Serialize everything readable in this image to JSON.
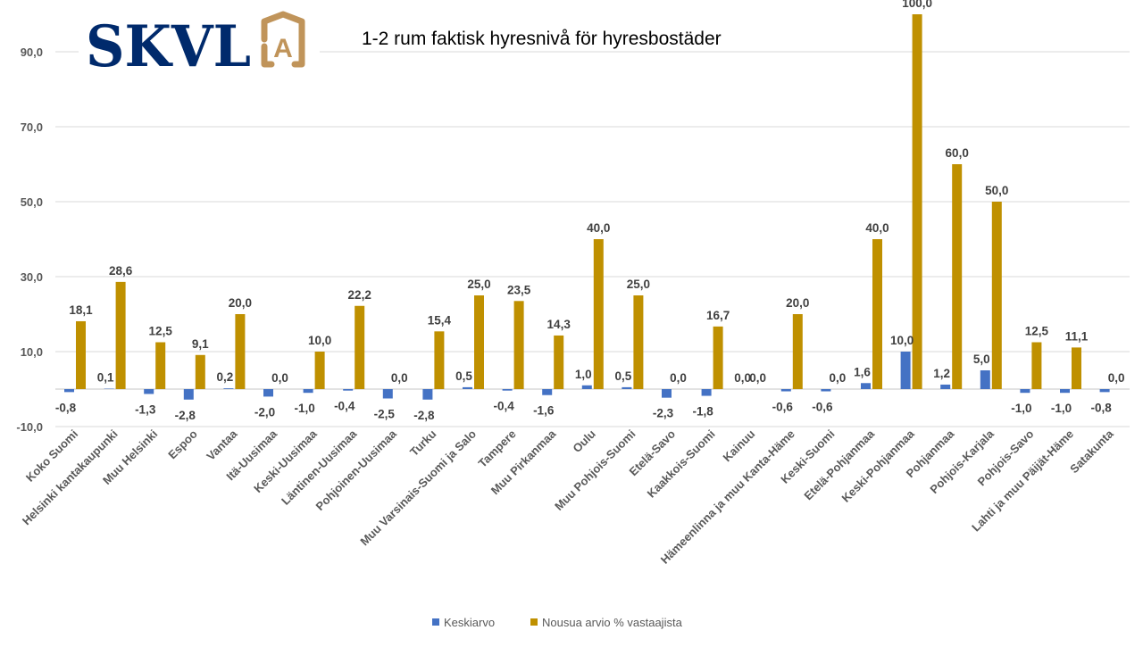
{
  "logo": {
    "text": "SKVL",
    "emblem_letter": "A",
    "navy": "#002A6C",
    "gold": "#C0945A"
  },
  "chart_data": {
    "type": "bar",
    "title": "1-2 rum faktisk hyresnivå för hyresbostäder",
    "xlabel": "",
    "ylabel": "",
    "ylim": [
      -10,
      100
    ],
    "yticks": [
      -10,
      10,
      30,
      50,
      70,
      90
    ],
    "ytick_labels": [
      "-10,0",
      "10,0",
      "30,0",
      "50,0",
      "70,0",
      "90,0"
    ],
    "grid": true,
    "legend_position": "bottom",
    "categories": [
      "Koko Suomi",
      "Helsinki kantakaupunki",
      "Muu Helsinki",
      "Espoo",
      "Vantaa",
      "Itä-Uusimaa",
      "Keski-Uusimaa",
      "Läntinen-Uusimaa",
      "Pohjoinen-Uusimaa",
      "Turku",
      "Muu Varsinais-Suomi ja Salo",
      "Tampere",
      "Muu Pirkanmaa",
      "Oulu",
      "Muu Pohjois-Suomi",
      "Etelä-Savo",
      "Kaakkois-Suomi",
      "Kainuu",
      "Hämeenlinna ja muu Kanta-Häme",
      "Keski-Suomi",
      "Etelä-Pohjanmaa",
      "Keski-Pohjanmaa",
      "Pohjanmaa",
      "Pohjois-Karjala",
      "Pohjois-Savo",
      "Lahti ja muu Päijät-Häme",
      "Satakunta"
    ],
    "series": [
      {
        "name": "Keskiarvo",
        "color": "#4472C4",
        "values": [
          -0.8,
          0.1,
          -1.3,
          -2.8,
          0.2,
          -2.0,
          -1.0,
          -0.4,
          -2.5,
          -2.8,
          0.5,
          -0.4,
          -1.6,
          1.0,
          0.5,
          -2.3,
          -1.8,
          0.0,
          -0.6,
          -0.6,
          1.6,
          10.0,
          1.2,
          5.0,
          -1.0,
          -1.0,
          -0.8
        ],
        "labels": [
          "-0,8",
          "0,1",
          "-1,3",
          "-2,8",
          "0,2",
          "-2,0",
          "-1,0",
          "-0,4",
          "-2,5",
          "-2,8",
          "0,5",
          "-0,4",
          "-1,6",
          "1,0",
          "0,5",
          "-2,3",
          "-1,8",
          "0,0",
          "-0,6",
          "-0,6",
          "1,6",
          "10,0",
          "1,2",
          "5,0",
          "-1,0",
          "-1,0",
          "-0,8"
        ]
      },
      {
        "name": "Nousua arvio % vastaajista",
        "color": "#BF9000",
        "values": [
          18.1,
          28.6,
          12.5,
          9.1,
          20.0,
          0.0,
          10.0,
          22.2,
          0.0,
          15.4,
          25.0,
          23.5,
          14.3,
          40.0,
          25.0,
          0.0,
          16.7,
          0.0,
          20.0,
          0.0,
          40.0,
          100.0,
          60.0,
          50.0,
          12.5,
          11.1,
          0.0
        ],
        "labels": [
          "18,1",
          "28,6",
          "12,5",
          "9,1",
          "20,0",
          "0,0",
          "10,0",
          "22,2",
          "0,0",
          "15,4",
          "25,0",
          "23,5",
          "14,3",
          "40,0",
          "25,0",
          "0,0",
          "16,7",
          "0,0",
          "20,0",
          "0,0",
          "40,0",
          "100,0",
          "60,0",
          "50,0",
          "12,5",
          "11,1",
          "0,0"
        ]
      }
    ]
  }
}
